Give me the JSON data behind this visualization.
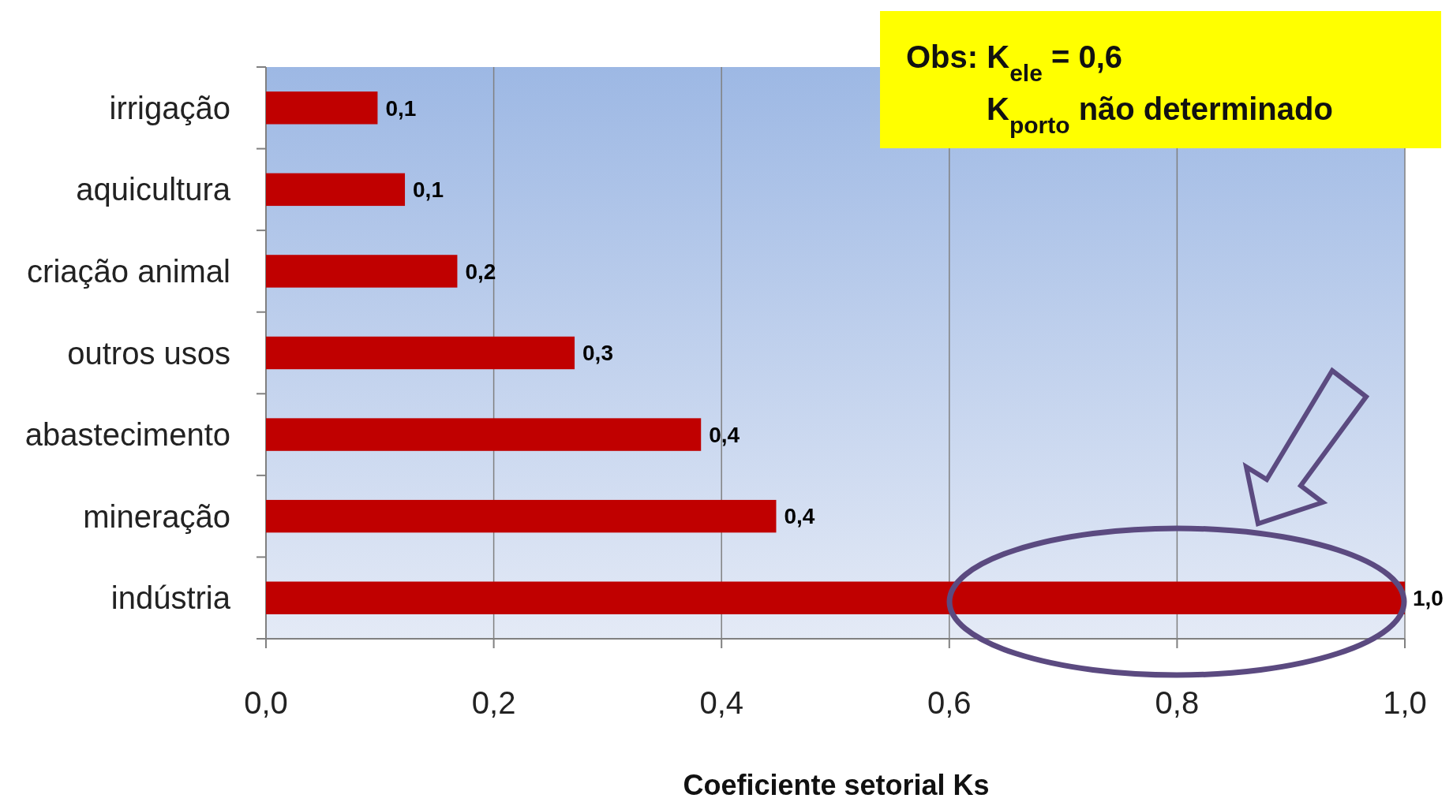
{
  "chart_data": {
    "type": "bar",
    "orientation": "horizontal",
    "xlabel": "Coeficiente  setorial  Ks",
    "categories": [
      "irrigação",
      "aquicultura",
      "criação animal",
      "outros usos",
      "abastecimento",
      "mineração",
      "indústria"
    ],
    "series": [
      {
        "color": "#c00000",
        "values": [
          0.098,
          0.122,
          0.168,
          0.271,
          0.382,
          0.448,
          1.0
        ],
        "value_labels": [
          "0,1",
          "0,1",
          "0,2",
          "0,3",
          "0,4",
          "0,4",
          "1,0"
        ]
      }
    ],
    "xlim": [
      0,
      1
    ],
    "xticks": [
      {
        "value": 0,
        "label": "0,0"
      },
      {
        "value": 0.2,
        "label": "0,2"
      },
      {
        "value": 0.4,
        "label": "0,4"
      },
      {
        "value": 0.6,
        "label": "0,6"
      },
      {
        "value": 0.8,
        "label": "0,8"
      },
      {
        "value": 1,
        "label": "1,0"
      }
    ],
    "grid": "x",
    "annotations": [
      "Obs:  K$_{ele}$ = 0,6",
      "K$_{porto}$  não determinado"
    ]
  }
}
